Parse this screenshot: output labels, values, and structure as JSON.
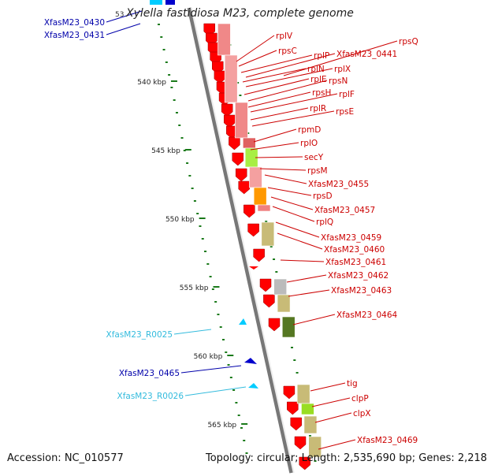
{
  "title": "Xylella fastidiosa M23, complete genome",
  "title_prefix": "53",
  "accession": "Accession: NC_010577",
  "summary": "Topology: circular; Length: 2,535,690 bp; Genes: 2,218",
  "colors": {
    "cds": "#ff0000",
    "rna": "#00ccff",
    "other_strand": "#0000cc",
    "label_red": "#cc0000",
    "label_blue": "#0000aa",
    "label_cyan": "#33bbdd",
    "tick": "#1a7a1a",
    "backbone": "#888888"
  },
  "ruler": [
    {
      "label": "540 kbp"
    },
    {
      "label": "545 kbp"
    },
    {
      "label": "550 kbp"
    },
    {
      "label": "555 kbp"
    },
    {
      "label": "560 kbp"
    },
    {
      "label": "565 kbp"
    }
  ],
  "left_labels": [
    {
      "text": "XfasM23_0430",
      "kind": "blue"
    },
    {
      "text": "XfasM23_0431",
      "kind": "blue"
    },
    {
      "text": "XfasM23_R0025",
      "kind": "cyan"
    },
    {
      "text": "XfasM23_0465",
      "kind": "blue"
    },
    {
      "text": "XfasM23_R0026",
      "kind": "cyan"
    }
  ],
  "right_labels": [
    {
      "text": "rpsQ"
    },
    {
      "text": "rplV"
    },
    {
      "text": "rpsC"
    },
    {
      "text": "rplP"
    },
    {
      "text": "XfasM23_0441"
    },
    {
      "text": "rplN"
    },
    {
      "text": "rplX"
    },
    {
      "text": "rplE"
    },
    {
      "text": "rpsN"
    },
    {
      "text": "rpsH"
    },
    {
      "text": "rplF"
    },
    {
      "text": "rplR"
    },
    {
      "text": "rpsE"
    },
    {
      "text": "rpmD"
    },
    {
      "text": "rplO"
    },
    {
      "text": "secY"
    },
    {
      "text": "rpsM"
    },
    {
      "text": "XfasM23_0455"
    },
    {
      "text": "rpsD"
    },
    {
      "text": "XfasM23_0457"
    },
    {
      "text": "rplQ"
    },
    {
      "text": "XfasM23_0459"
    },
    {
      "text": "XfasM23_0460"
    },
    {
      "text": "XfasM23_0461"
    },
    {
      "text": "XfasM23_0462"
    },
    {
      "text": "XfasM23_0463"
    },
    {
      "text": "XfasM23_0464"
    },
    {
      "text": "tig"
    },
    {
      "text": "clpP"
    },
    {
      "text": "clpX"
    },
    {
      "text": "XfasM23_0469"
    }
  ]
}
